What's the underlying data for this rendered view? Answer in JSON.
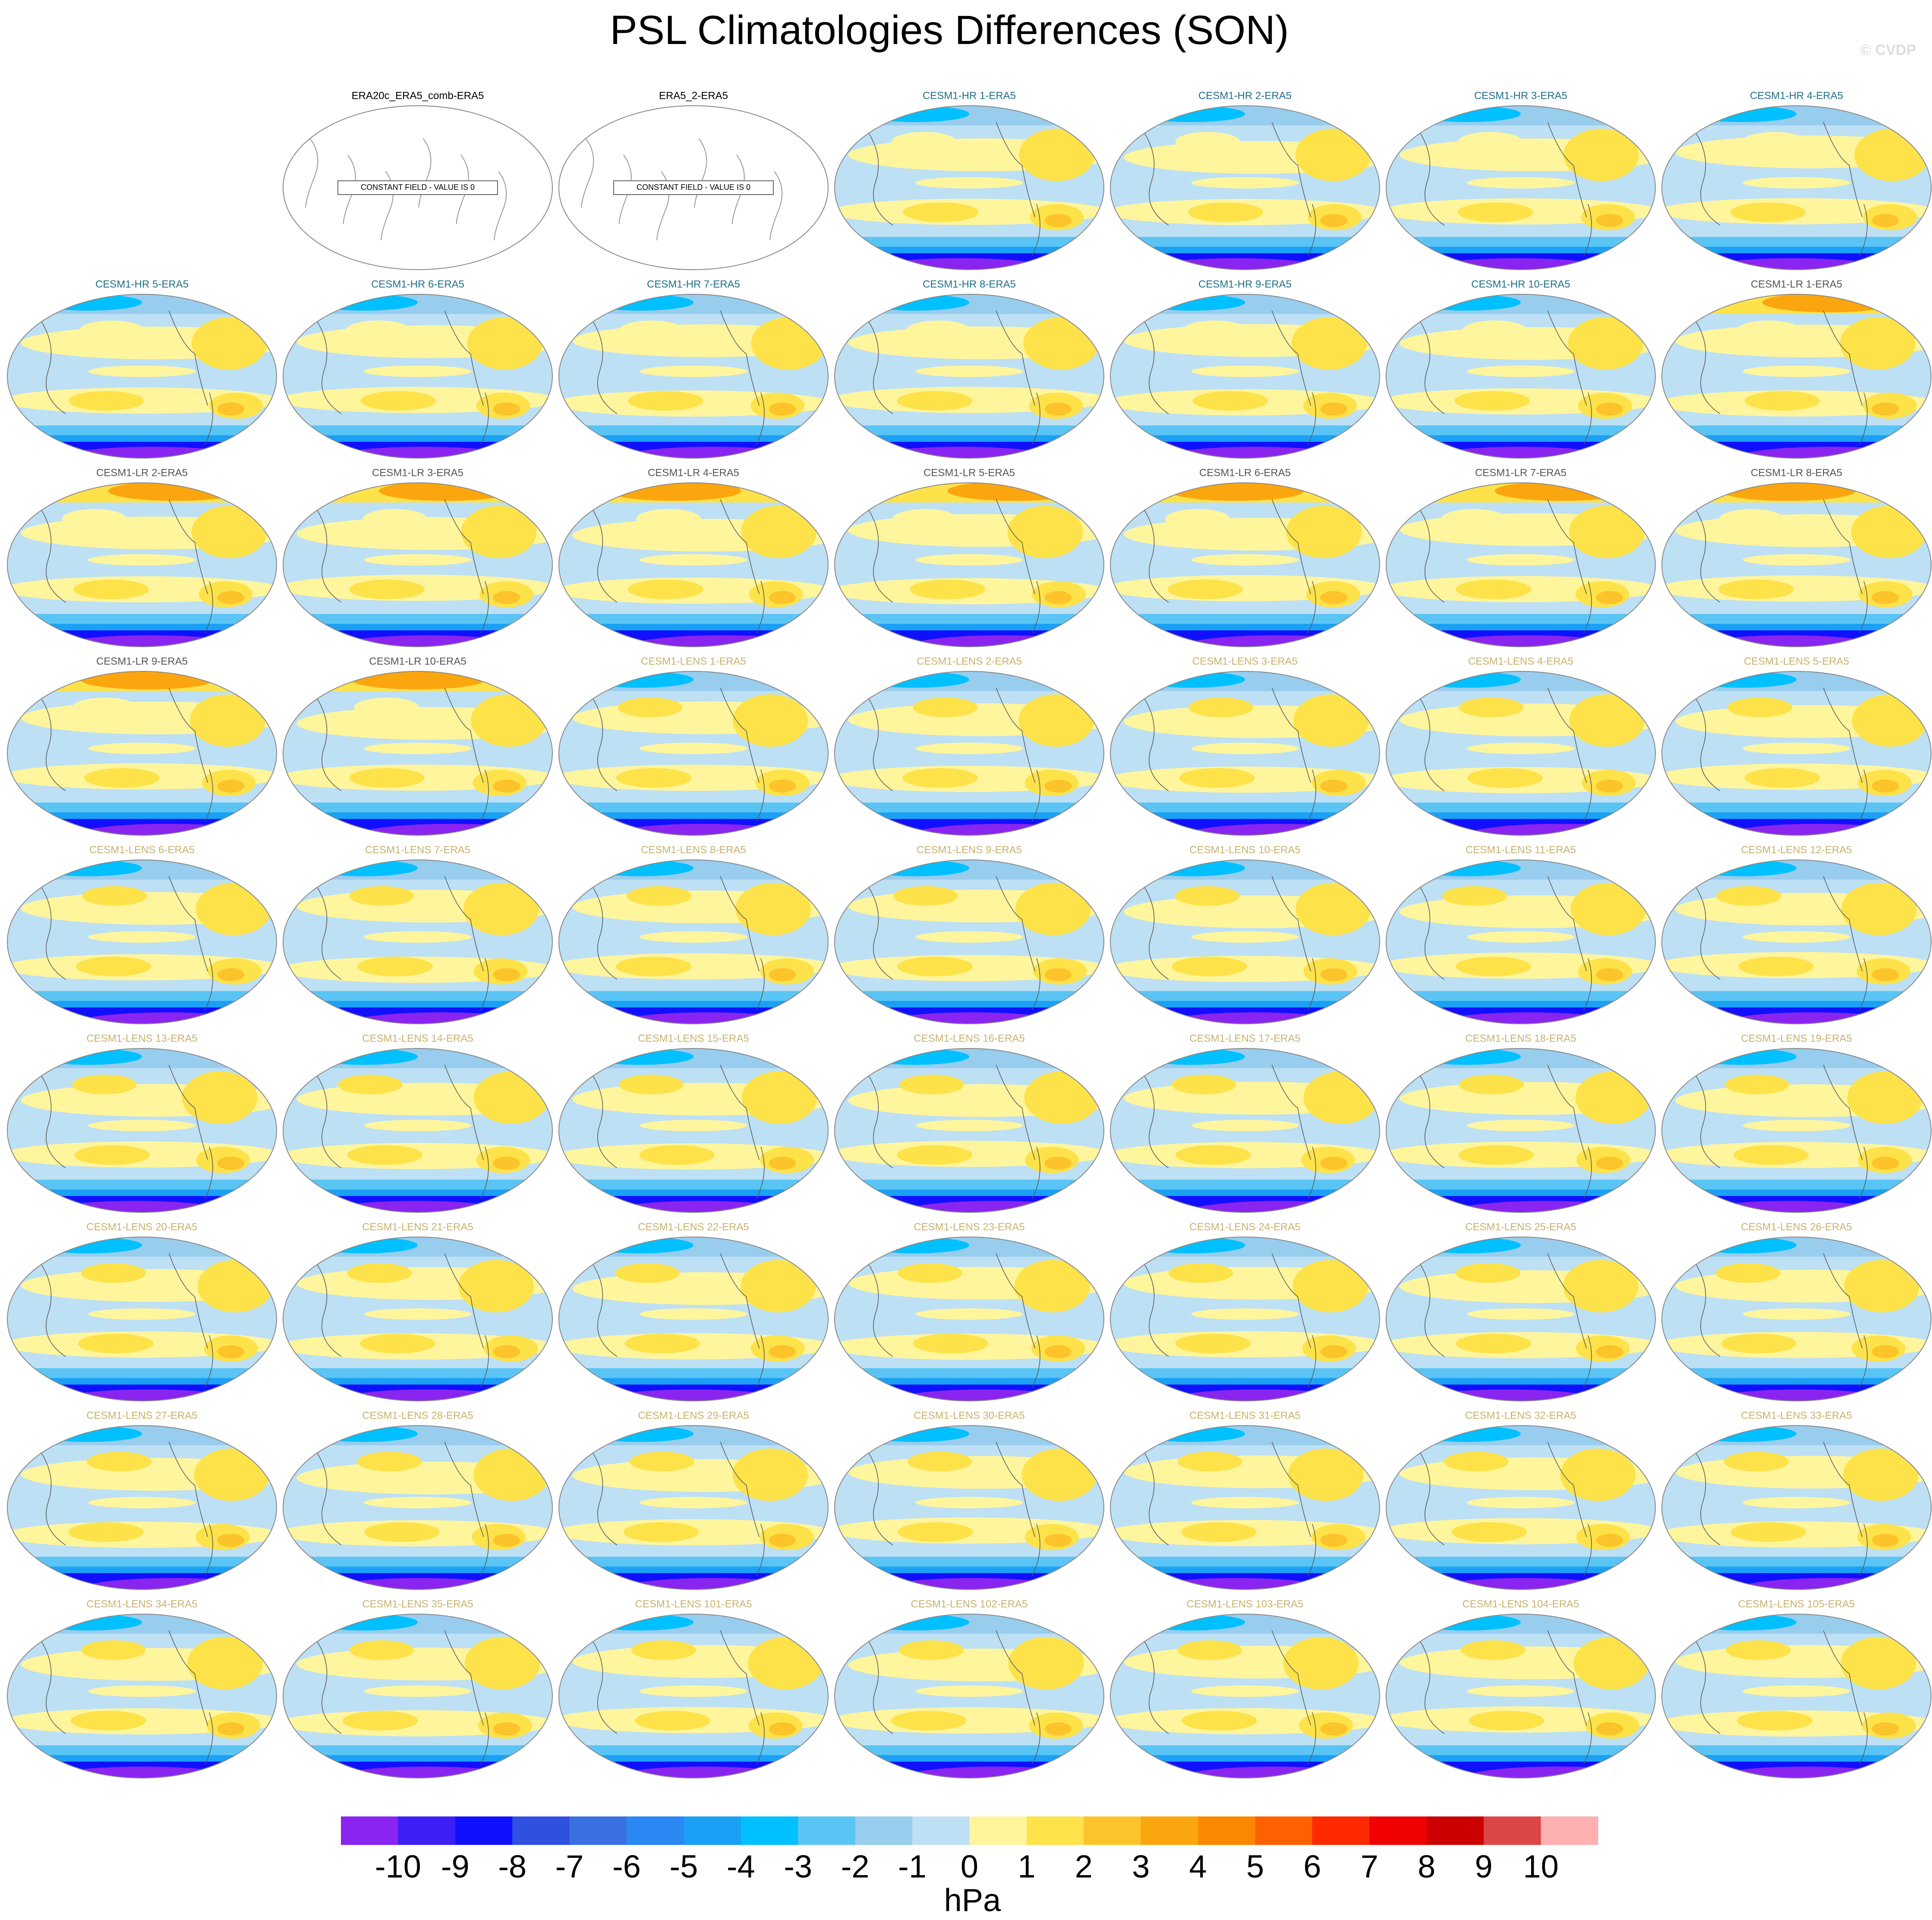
{
  "title": "PSL Climatologies Differences (SON)",
  "watermark": "© CVDP",
  "panels": [
    {
      "title": "ERA20c_ERA5_comb-ERA5",
      "title_color": "#000000",
      "note": "CONSTANT FIELD - VALUE IS 0"
    },
    {
      "title": "ERA5_2-ERA5",
      "title_color": "#000000",
      "note": "CONSTANT FIELD - VALUE IS 0"
    },
    {
      "title": "CESM1-HR 1-ERA5",
      "title_color": "#1f6f8b"
    },
    {
      "title": "CESM1-HR 2-ERA5",
      "title_color": "#1f6f8b"
    },
    {
      "title": "CESM1-HR 3-ERA5",
      "title_color": "#1f6f8b"
    },
    {
      "title": "CESM1-HR 4-ERA5",
      "title_color": "#1f6f8b"
    },
    {
      "title": "CESM1-HR 5-ERA5",
      "title_color": "#1f6f8b"
    },
    {
      "title": "CESM1-HR 6-ERA5",
      "title_color": "#1f6f8b"
    },
    {
      "title": "CESM1-HR 7-ERA5",
      "title_color": "#1f6f8b"
    },
    {
      "title": "CESM1-HR 8-ERA5",
      "title_color": "#1f6f8b"
    },
    {
      "title": "CESM1-HR 9-ERA5",
      "title_color": "#1f6f8b"
    },
    {
      "title": "CESM1-HR 10-ERA5",
      "title_color": "#1f6f8b"
    },
    {
      "title": "CESM1-LR 1-ERA5",
      "title_color": "#555555"
    },
    {
      "title": "CESM1-LR 2-ERA5",
      "title_color": "#555555"
    },
    {
      "title": "CESM1-LR 3-ERA5",
      "title_color": "#555555"
    },
    {
      "title": "CESM1-LR 4-ERA5",
      "title_color": "#555555"
    },
    {
      "title": "CESM1-LR 5-ERA5",
      "title_color": "#555555"
    },
    {
      "title": "CESM1-LR 6-ERA5",
      "title_color": "#555555"
    },
    {
      "title": "CESM1-LR 7-ERA5",
      "title_color": "#555555"
    },
    {
      "title": "CESM1-LR 8-ERA5",
      "title_color": "#555555"
    },
    {
      "title": "CESM1-LR 9-ERA5",
      "title_color": "#555555"
    },
    {
      "title": "CESM1-LR 10-ERA5",
      "title_color": "#555555"
    },
    {
      "title": "CESM1-LENS 1-ERA5",
      "title_color": "#c8b26e"
    },
    {
      "title": "CESM1-LENS 2-ERA5",
      "title_color": "#c8b26e"
    },
    {
      "title": "CESM1-LENS 3-ERA5",
      "title_color": "#c8b26e"
    },
    {
      "title": "CESM1-LENS 4-ERA5",
      "title_color": "#c8b26e"
    },
    {
      "title": "CESM1-LENS 5-ERA5",
      "title_color": "#c8b26e"
    },
    {
      "title": "CESM1-LENS 6-ERA5",
      "title_color": "#c8b26e"
    },
    {
      "title": "CESM1-LENS 7-ERA5",
      "title_color": "#c8b26e"
    },
    {
      "title": "CESM1-LENS 8-ERA5",
      "title_color": "#c8b26e"
    },
    {
      "title": "CESM1-LENS 9-ERA5",
      "title_color": "#c8b26e"
    },
    {
      "title": "CESM1-LENS 10-ERA5",
      "title_color": "#c8b26e"
    },
    {
      "title": "CESM1-LENS 11-ERA5",
      "title_color": "#c8b26e"
    },
    {
      "title": "CESM1-LENS 12-ERA5",
      "title_color": "#c8b26e"
    },
    {
      "title": "CESM1-LENS 13-ERA5",
      "title_color": "#c8b26e"
    },
    {
      "title": "CESM1-LENS 14-ERA5",
      "title_color": "#c8b26e"
    },
    {
      "title": "CESM1-LENS 15-ERA5",
      "title_color": "#c8b26e"
    },
    {
      "title": "CESM1-LENS 16-ERA5",
      "title_color": "#c8b26e"
    },
    {
      "title": "CESM1-LENS 17-ERA5",
      "title_color": "#c8b26e"
    },
    {
      "title": "CESM1-LENS 18-ERA5",
      "title_color": "#c8b26e"
    },
    {
      "title": "CESM1-LENS 19-ERA5",
      "title_color": "#c8b26e"
    },
    {
      "title": "CESM1-LENS 20-ERA5",
      "title_color": "#c8b26e"
    },
    {
      "title": "CESM1-LENS 21-ERA5",
      "title_color": "#c8b26e"
    },
    {
      "title": "CESM1-LENS 22-ERA5",
      "title_color": "#c8b26e"
    },
    {
      "title": "CESM1-LENS 23-ERA5",
      "title_color": "#c8b26e"
    },
    {
      "title": "CESM1-LENS 24-ERA5",
      "title_color": "#c8b26e"
    },
    {
      "title": "CESM1-LENS 25-ERA5",
      "title_color": "#c8b26e"
    },
    {
      "title": "CESM1-LENS 26-ERA5",
      "title_color": "#c8b26e"
    },
    {
      "title": "CESM1-LENS 27-ERA5",
      "title_color": "#c8b26e"
    },
    {
      "title": "CESM1-LENS 28-ERA5",
      "title_color": "#c8b26e"
    },
    {
      "title": "CESM1-LENS 29-ERA5",
      "title_color": "#c8b26e"
    },
    {
      "title": "CESM1-LENS 30-ERA5",
      "title_color": "#c8b26e"
    },
    {
      "title": "CESM1-LENS 31-ERA5",
      "title_color": "#c8b26e"
    },
    {
      "title": "CESM1-LENS 32-ERA5",
      "title_color": "#c8b26e"
    },
    {
      "title": "CESM1-LENS 33-ERA5",
      "title_color": "#c8b26e"
    },
    {
      "title": "CESM1-LENS 34-ERA5",
      "title_color": "#c8b26e"
    },
    {
      "title": "CESM1-LENS 35-ERA5",
      "title_color": "#c8b26e"
    },
    {
      "title": "CESM1-LENS 101-ERA5",
      "title_color": "#c8b26e"
    },
    {
      "title": "CESM1-LENS 102-ERA5",
      "title_color": "#c8b26e"
    },
    {
      "title": "CESM1-LENS 103-ERA5",
      "title_color": "#c8b26e"
    },
    {
      "title": "CESM1-LENS 104-ERA5",
      "title_color": "#c8b26e"
    },
    {
      "title": "CESM1-LENS 105-ERA5",
      "title_color": "#c8b26e"
    }
  ],
  "colorbar": {
    "colors": [
      "#8a24f0",
      "#3c1ff5",
      "#1010ff",
      "#3050e0",
      "#3a70e0",
      "#2a88f5",
      "#1aa0f5",
      "#00c0ff",
      "#5ac5f5",
      "#98cdee",
      "#bde0f5",
      "#fff59d",
      "#fde24a",
      "#fcc42a",
      "#fba60e",
      "#fb8800",
      "#ff6000",
      "#ff2a00",
      "#f00000",
      "#cc0000",
      "#dc4646",
      "#ffb0b0"
    ],
    "ticks": [
      -10,
      -9,
      -8,
      -7,
      -6,
      -5,
      -4,
      -3,
      -2,
      -1,
      0,
      1,
      2,
      3,
      4,
      5,
      6,
      7,
      8,
      9,
      10
    ],
    "label": "hPa"
  }
}
